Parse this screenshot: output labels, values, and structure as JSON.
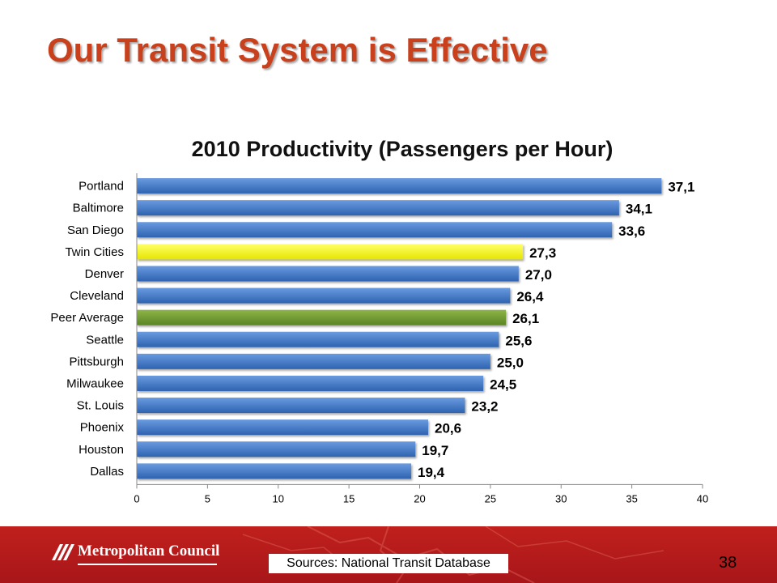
{
  "slide": {
    "title": "Our Transit System is Effective",
    "sources": "Sources: National Transit Database",
    "page_number": "38",
    "logo_text": "Metropolitan Council"
  },
  "colors": {
    "title": "#c8401c",
    "bar_default": "#3a72bf",
    "bar_highlight": "#f5f500",
    "bar_average": "#6e9a2e",
    "footer": "#b51b1b"
  },
  "chart_data": {
    "type": "bar",
    "orientation": "horizontal",
    "title": "2010 Productivity (Passengers per Hour)",
    "categories": [
      "Portland",
      "Baltimore",
      "San Diego",
      "Twin Cities",
      "Denver",
      "Cleveland",
      "Peer Average",
      "Seattle",
      "Pittsburgh",
      "Milwaukee",
      "St. Louis",
      "Phoenix",
      "Houston",
      "Dallas"
    ],
    "values": [
      37.1,
      34.1,
      33.6,
      27.3,
      27.0,
      26.4,
      26.1,
      25.6,
      25.0,
      24.5,
      23.2,
      20.6,
      19.7,
      19.4
    ],
    "value_labels": [
      "37,1",
      "34,1",
      "33,6",
      "27,3",
      "27,0",
      "26,4",
      "26,1",
      "25,6",
      "25,0",
      "24,5",
      "23,2",
      "20,6",
      "19,7",
      "19,4"
    ],
    "bar_styles": [
      "default",
      "default",
      "default",
      "highlight",
      "default",
      "default",
      "average",
      "default",
      "default",
      "default",
      "default",
      "default",
      "default",
      "default"
    ],
    "xlim": [
      0,
      40
    ],
    "xticks": [
      0,
      5,
      10,
      15,
      20,
      25,
      30,
      35,
      40
    ],
    "grid": false,
    "legend": "none"
  }
}
